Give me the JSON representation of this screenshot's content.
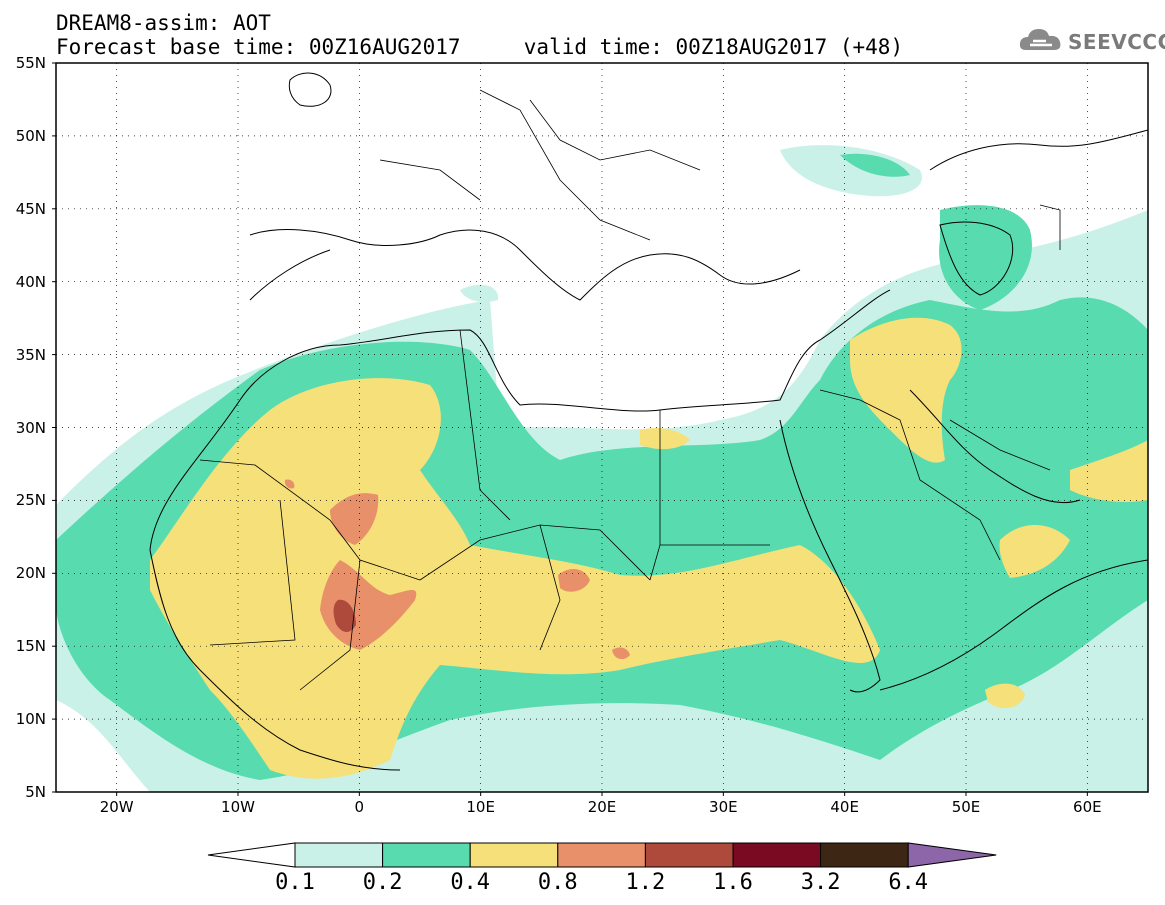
{
  "header": {
    "line1": "DREAM8-assim: AOT",
    "line2": "Forecast base time: 00Z16AUG2017     valid time: 00Z18AUG2017 (+48)",
    "logo_text": "SEEVCCC",
    "logo_icon": "cloud-logo-icon"
  },
  "map": {
    "lon_range": [
      -25,
      65
    ],
    "lat_range": [
      5,
      55
    ],
    "lat_ticks": [
      "55N",
      "50N",
      "45N",
      "40N",
      "35N",
      "30N",
      "25N",
      "20N",
      "15N",
      "10N",
      "5N"
    ],
    "lon_ticks": [
      "20W",
      "10W",
      "0",
      "10E",
      "20E",
      "30E",
      "40E",
      "50E",
      "60E"
    ],
    "grid": "dotted"
  },
  "colorbar": {
    "labels": [
      "0.1",
      "0.2",
      "0.4",
      "0.8",
      "1.2",
      "1.6",
      "3.2",
      "6.4"
    ],
    "colors": [
      "#ffffff",
      "#c9f1e8",
      "#58dbaf",
      "#f6e07a",
      "#e8906a",
      "#ad4a3c",
      "#7a0a22",
      "#3e2614",
      "#8c66a8"
    ]
  }
}
